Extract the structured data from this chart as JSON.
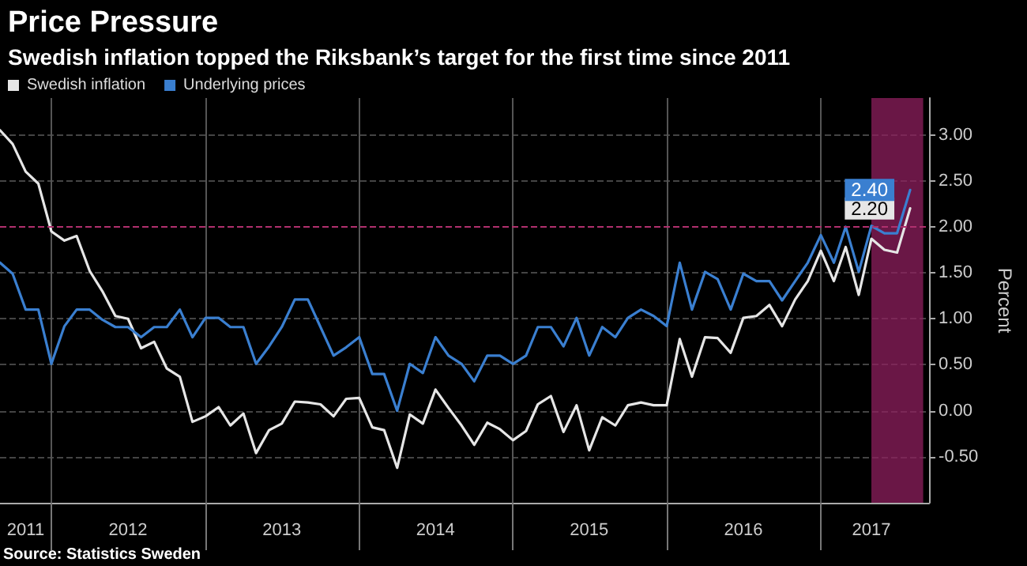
{
  "chart_data": {
    "type": "line",
    "title": "Price Pressure",
    "subtitle": "Swedish inflation topped the Riksbank’s target for the first time since 2011",
    "ylabel": "Percent",
    "annotations": [
      "Source: Statistics Sweden"
    ],
    "x": [
      "2011-09",
      "2011-10",
      "2011-11",
      "2011-12",
      "2012-01",
      "2012-02",
      "2012-03",
      "2012-04",
      "2012-05",
      "2012-06",
      "2012-07",
      "2012-08",
      "2012-09",
      "2012-10",
      "2012-11",
      "2012-12",
      "2013-01",
      "2013-02",
      "2013-03",
      "2013-04",
      "2013-05",
      "2013-06",
      "2013-07",
      "2013-08",
      "2013-09",
      "2013-10",
      "2013-11",
      "2013-12",
      "2014-01",
      "2014-02",
      "2014-03",
      "2014-04",
      "2014-05",
      "2014-06",
      "2014-07",
      "2014-08",
      "2014-09",
      "2014-10",
      "2014-11",
      "2014-12",
      "2015-01",
      "2015-02",
      "2015-03",
      "2015-04",
      "2015-05",
      "2015-06",
      "2015-07",
      "2015-08",
      "2015-09",
      "2015-10",
      "2015-11",
      "2015-12",
      "2016-01",
      "2016-02",
      "2016-03",
      "2016-04",
      "2016-05",
      "2016-06",
      "2016-07",
      "2016-08",
      "2016-09",
      "2016-10",
      "2016-11",
      "2016-12",
      "2017-01",
      "2017-02",
      "2017-03",
      "2017-04",
      "2017-05",
      "2017-06",
      "2017-07",
      "2017-08"
    ],
    "series": [
      {
        "name": "Swedish inflation",
        "color": "#e6e6e6",
        "values": [
          3.05,
          2.9,
          2.6,
          2.47,
          1.95,
          1.85,
          1.9,
          1.52,
          1.3,
          1.03,
          1.0,
          0.68,
          0.75,
          0.46,
          0.37,
          -0.12,
          -0.06,
          0.04,
          -0.16,
          -0.03,
          -0.46,
          -0.21,
          -0.14,
          0.1,
          0.09,
          0.07,
          -0.06,
          0.13,
          0.14,
          -0.18,
          -0.21,
          -0.62,
          -0.04,
          -0.14,
          0.23,
          0.03,
          -0.16,
          -0.37,
          -0.13,
          -0.2,
          -0.32,
          -0.22,
          0.07,
          0.16,
          -0.23,
          0.06,
          -0.43,
          -0.07,
          -0.16,
          0.06,
          0.09,
          0.06,
          0.06,
          0.78,
          0.37,
          0.8,
          0.79,
          0.63,
          1.01,
          1.03,
          1.15,
          0.92,
          1.21,
          1.41,
          1.74,
          1.41,
          1.78,
          1.26,
          1.87,
          1.75,
          1.72,
          2.2
        ],
        "value_labels": [
          null,
          null,
          null,
          null,
          null,
          null,
          null,
          null,
          null,
          null,
          null,
          null,
          null,
          null,
          null,
          null,
          null,
          null,
          null,
          null,
          null,
          null,
          null,
          null,
          null,
          null,
          null,
          null,
          null,
          null,
          null,
          null,
          null,
          null,
          null,
          null,
          null,
          null,
          null,
          null,
          null,
          null,
          null,
          null,
          null,
          null,
          null,
          null,
          null,
          null,
          null,
          null,
          null,
          null,
          null,
          null,
          null,
          null,
          null,
          null,
          null,
          null,
          null,
          null,
          null,
          null,
          null,
          null,
          null,
          null,
          null,
          "2.20"
        ]
      },
      {
        "name": "Underlying prices",
        "color": "#3a7fd0",
        "values": [
          1.61,
          1.49,
          1.1,
          1.1,
          0.51,
          0.92,
          1.1,
          1.1,
          0.99,
          0.91,
          0.91,
          0.8,
          0.91,
          0.91,
          1.1,
          0.8,
          1.01,
          1.01,
          0.91,
          0.91,
          0.51,
          0.7,
          0.91,
          1.21,
          1.21,
          0.91,
          0.6,
          0.69,
          0.8,
          0.4,
          0.4,
          0.0,
          0.51,
          0.41,
          0.8,
          0.6,
          0.51,
          0.32,
          0.6,
          0.6,
          0.51,
          0.6,
          0.91,
          0.91,
          0.7,
          1.01,
          0.6,
          0.91,
          0.8,
          1.01,
          1.1,
          1.03,
          0.92,
          1.61,
          1.1,
          1.51,
          1.43,
          1.1,
          1.49,
          1.41,
          1.41,
          1.2,
          1.41,
          1.61,
          1.91,
          1.61,
          2.0,
          1.51,
          2.01,
          1.93,
          1.93,
          2.4
        ],
        "value_labels": [
          null,
          null,
          null,
          null,
          null,
          null,
          null,
          null,
          null,
          null,
          null,
          null,
          null,
          null,
          null,
          null,
          null,
          null,
          null,
          null,
          null,
          null,
          null,
          null,
          null,
          null,
          null,
          null,
          null,
          null,
          null,
          null,
          null,
          null,
          null,
          null,
          null,
          null,
          null,
          null,
          null,
          null,
          null,
          null,
          null,
          null,
          null,
          null,
          null,
          null,
          null,
          null,
          null,
          null,
          null,
          null,
          null,
          null,
          null,
          null,
          null,
          null,
          null,
          null,
          null,
          null,
          null,
          null,
          null,
          null,
          null,
          "2.40"
        ]
      }
    ],
    "xlim": [
      "2011-09",
      "2017-09-15"
    ],
    "xticks": [
      {
        "value": "2011-11",
        "label": "2011"
      },
      {
        "value": "2012-01",
        "label": null
      },
      {
        "value": "2012-07",
        "label": "2012"
      },
      {
        "value": "2013-01",
        "label": null
      },
      {
        "value": "2013-07",
        "label": "2013"
      },
      {
        "value": "2014-01",
        "label": null
      },
      {
        "value": "2014-07",
        "label": "2014"
      },
      {
        "value": "2015-01",
        "label": null
      },
      {
        "value": "2015-07",
        "label": "2015"
      },
      {
        "value": "2016-01",
        "label": null
      },
      {
        "value": "2016-07",
        "label": "2016"
      },
      {
        "value": "2017-01",
        "label": null
      },
      {
        "value": "2017-05",
        "label": "2017"
      }
    ],
    "ylim": [
      -1,
      3.4
    ],
    "yticks": [
      {
        "value": -0.5,
        "label": "-0.50"
      },
      {
        "value": 0,
        "label": "0.00"
      },
      {
        "value": 0.5,
        "label": "0.50"
      },
      {
        "value": 1,
        "label": "1.00"
      },
      {
        "value": 1.5,
        "label": "1.50"
      },
      {
        "value": 2,
        "label": "2.00"
      },
      {
        "value": 2.5,
        "label": "2.50"
      },
      {
        "value": 3,
        "label": "3.00"
      }
    ],
    "ref_lines": [
      {
        "axis": "y",
        "value": 2,
        "color": "#b0306e",
        "line_style": "dashed"
      }
    ],
    "bands": [
      {
        "axis": "x",
        "from": "2017-05",
        "to": "2017-09",
        "color": "#8e1f5e"
      }
    ],
    "grid": true,
    "legend": "top left",
    "marker": "none",
    "line_style": "solid"
  }
}
